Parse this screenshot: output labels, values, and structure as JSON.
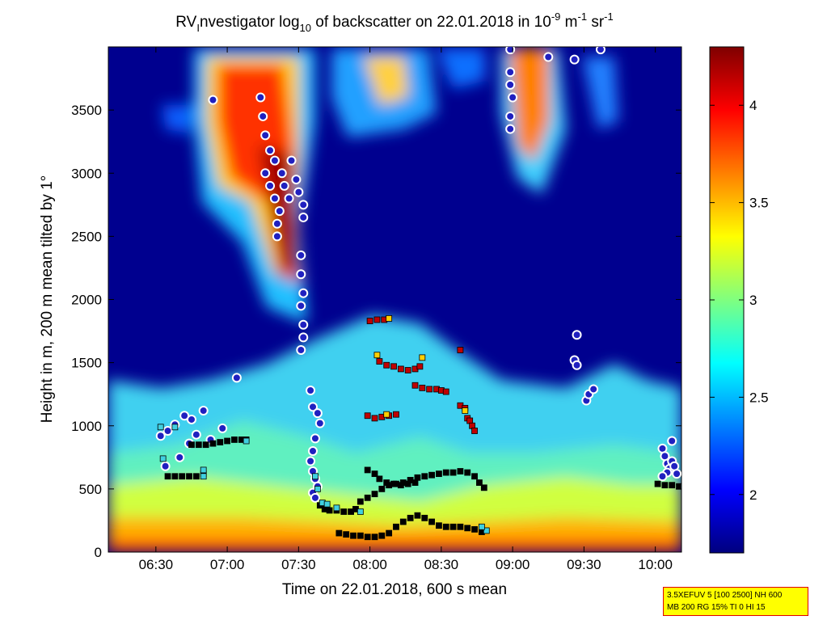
{
  "chart_data": {
    "type": "heatmap",
    "title": {
      "prefix": "RV",
      "sub_i": "I",
      "after_i": "nvestigator log",
      "sub_10": "10",
      "middle": " of backscatter on 22.01.2018 in 10",
      "exp_m9": "-9",
      "unit_m": " m",
      "exp_m1": "-1",
      "unit_sr": " sr",
      "exp_sr": "-1"
    },
    "xlabel": "Time on 22.01.2018, 600 s mean",
    "ylabel": "Height in m, 200 m mean tilted by 1°",
    "x_ticks": [
      "06:30",
      "07:00",
      "07:30",
      "08:00",
      "08:30",
      "09:00",
      "09:30",
      "10:00"
    ],
    "x_tick_minutes": [
      390,
      420,
      450,
      480,
      510,
      540,
      570,
      600
    ],
    "xlim_minutes": [
      370,
      611
    ],
    "y_ticks": [
      0,
      500,
      1000,
      1500,
      2000,
      2500,
      3000,
      3500
    ],
    "ylim": [
      0,
      4000
    ],
    "colorbar": {
      "ticks": [
        "2",
        "2.5",
        "3",
        "3.5",
        "4"
      ],
      "tick_values": [
        2,
        2.5,
        3,
        3.5,
        4
      ],
      "range": [
        1.7,
        4.3
      ],
      "colormap": "jet"
    },
    "series": [
      {
        "marker": "circle",
        "color": "#2020c0",
        "edge": "#ffffff",
        "points": [
          [
            392,
            920
          ],
          [
            395,
            960
          ],
          [
            398,
            1010
          ],
          [
            402,
            1080
          ],
          [
            404,
            860
          ],
          [
            407,
            930
          ],
          [
            410,
            1120
          ],
          [
            394,
            680
          ],
          [
            400,
            750
          ],
          [
            405,
            1050
          ],
          [
            413,
            890
          ],
          [
            418,
            980
          ],
          [
            424,
            1380
          ],
          [
            414,
            3580
          ],
          [
            434,
            3600
          ],
          [
            435,
            3450
          ],
          [
            436,
            3300
          ],
          [
            438,
            3180
          ],
          [
            440,
            3100
          ],
          [
            436,
            3000
          ],
          [
            438,
            2900
          ],
          [
            440,
            2800
          ],
          [
            442,
            2700
          ],
          [
            441,
            2600
          ],
          [
            441,
            2500
          ],
          [
            443,
            3000
          ],
          [
            444,
            2900
          ],
          [
            446,
            2800
          ],
          [
            447,
            3100
          ],
          [
            449,
            2950
          ],
          [
            450,
            2850
          ],
          [
            452,
            2750
          ],
          [
            452,
            2650
          ],
          [
            451,
            2350
          ],
          [
            451,
            2200
          ],
          [
            452,
            2050
          ],
          [
            451,
            1950
          ],
          [
            452,
            1800
          ],
          [
            452,
            1700
          ],
          [
            451,
            1600
          ],
          [
            455,
            1280
          ],
          [
            456,
            1150
          ],
          [
            458,
            1100
          ],
          [
            459,
            1020
          ],
          [
            457,
            900
          ],
          [
            456,
            800
          ],
          [
            455,
            720
          ],
          [
            456,
            640
          ],
          [
            457,
            580
          ],
          [
            458,
            520
          ],
          [
            456,
            470
          ],
          [
            457,
            430
          ],
          [
            539,
            3980
          ],
          [
            539,
            3800
          ],
          [
            539,
            3700
          ],
          [
            540,
            3600
          ],
          [
            539,
            3450
          ],
          [
            539,
            3350
          ],
          [
            555,
            3920
          ],
          [
            566,
            3900
          ],
          [
            577,
            3980
          ],
          [
            567,
            1720
          ],
          [
            566,
            1520
          ],
          [
            567,
            1480
          ],
          [
            571,
            1200
          ],
          [
            572,
            1250
          ],
          [
            574,
            1290
          ],
          [
            603,
            820
          ],
          [
            604,
            760
          ],
          [
            605,
            700
          ],
          [
            606,
            660
          ],
          [
            607,
            720
          ],
          [
            608,
            680
          ],
          [
            605,
            630
          ],
          [
            609,
            620
          ],
          [
            607,
            880
          ],
          [
            603,
            600
          ]
        ]
      },
      {
        "marker": "square",
        "color": "#000000",
        "points": [
          [
            395,
            600
          ],
          [
            398,
            600
          ],
          [
            401,
            600
          ],
          [
            404,
            600
          ],
          [
            407,
            600
          ],
          [
            410,
            620
          ],
          [
            405,
            850
          ],
          [
            408,
            850
          ],
          [
            411,
            850
          ],
          [
            414,
            860
          ],
          [
            417,
            870
          ],
          [
            420,
            880
          ],
          [
            423,
            890
          ],
          [
            426,
            890
          ],
          [
            428,
            890
          ],
          [
            459,
            370
          ],
          [
            461,
            340
          ],
          [
            463,
            330
          ],
          [
            466,
            330
          ],
          [
            469,
            320
          ],
          [
            472,
            320
          ],
          [
            474,
            340
          ],
          [
            476,
            400
          ],
          [
            479,
            430
          ],
          [
            482,
            460
          ],
          [
            485,
            500
          ],
          [
            488,
            530
          ],
          [
            491,
            540
          ],
          [
            494,
            550
          ],
          [
            497,
            570
          ],
          [
            500,
            590
          ],
          [
            503,
            600
          ],
          [
            506,
            610
          ],
          [
            509,
            620
          ],
          [
            512,
            630
          ],
          [
            515,
            630
          ],
          [
            518,
            640
          ],
          [
            521,
            630
          ],
          [
            524,
            600
          ],
          [
            526,
            550
          ],
          [
            528,
            510
          ],
          [
            467,
            150
          ],
          [
            470,
            140
          ],
          [
            473,
            130
          ],
          [
            476,
            130
          ],
          [
            479,
            120
          ],
          [
            482,
            120
          ],
          [
            485,
            130
          ],
          [
            488,
            150
          ],
          [
            491,
            200
          ],
          [
            494,
            240
          ],
          [
            497,
            270
          ],
          [
            500,
            290
          ],
          [
            503,
            270
          ],
          [
            506,
            240
          ],
          [
            509,
            210
          ],
          [
            512,
            200
          ],
          [
            515,
            200
          ],
          [
            518,
            200
          ],
          [
            521,
            190
          ],
          [
            524,
            180
          ],
          [
            527,
            160
          ],
          [
            479,
            650
          ],
          [
            482,
            620
          ],
          [
            484,
            580
          ],
          [
            487,
            550
          ],
          [
            490,
            540
          ],
          [
            493,
            530
          ],
          [
            496,
            540
          ],
          [
            499,
            550
          ],
          [
            601,
            540
          ],
          [
            604,
            530
          ],
          [
            607,
            530
          ],
          [
            610,
            520
          ]
        ]
      },
      {
        "marker": "square",
        "color": "#c00000",
        "points": [
          [
            480,
            1830
          ],
          [
            483,
            1840
          ],
          [
            486,
            1840
          ],
          [
            479,
            1080
          ],
          [
            482,
            1060
          ],
          [
            485,
            1070
          ],
          [
            488,
            1080
          ],
          [
            491,
            1090
          ],
          [
            484,
            1510
          ],
          [
            487,
            1480
          ],
          [
            490,
            1470
          ],
          [
            493,
            1450
          ],
          [
            496,
            1440
          ],
          [
            499,
            1450
          ],
          [
            501,
            1470
          ],
          [
            499,
            1320
          ],
          [
            502,
            1300
          ],
          [
            505,
            1290
          ],
          [
            508,
            1290
          ],
          [
            510,
            1280
          ],
          [
            518,
            1600
          ],
          [
            518,
            1160
          ],
          [
            520,
            1140
          ],
          [
            521,
            1060
          ],
          [
            522,
            1040
          ],
          [
            523,
            1000
          ],
          [
            524,
            960
          ],
          [
            512,
            1270
          ]
        ]
      },
      {
        "marker": "square",
        "color": "#40d0e0",
        "points": [
          [
            393,
            740
          ],
          [
            410,
            650
          ],
          [
            410,
            600
          ],
          [
            457,
            600
          ],
          [
            458,
            500
          ],
          [
            460,
            390
          ],
          [
            462,
            380
          ],
          [
            476,
            320
          ],
          [
            466,
            350
          ],
          [
            529,
            170
          ],
          [
            527,
            200
          ],
          [
            612,
            520
          ],
          [
            428,
            880
          ],
          [
            392,
            990
          ],
          [
            398,
            990
          ]
        ]
      },
      {
        "marker": "square",
        "color": "#ffd000",
        "points": [
          [
            488,
            1850
          ],
          [
            483,
            1560
          ],
          [
            502,
            1540
          ],
          [
            520,
            1120
          ],
          [
            487,
            1090
          ]
        ]
      }
    ]
  },
  "annotation": {
    "line1": "3.5XEFUV 5 [100 2500] NH 600",
    "line2": "MB 200 RG 15% TI 0 HI 15"
  }
}
